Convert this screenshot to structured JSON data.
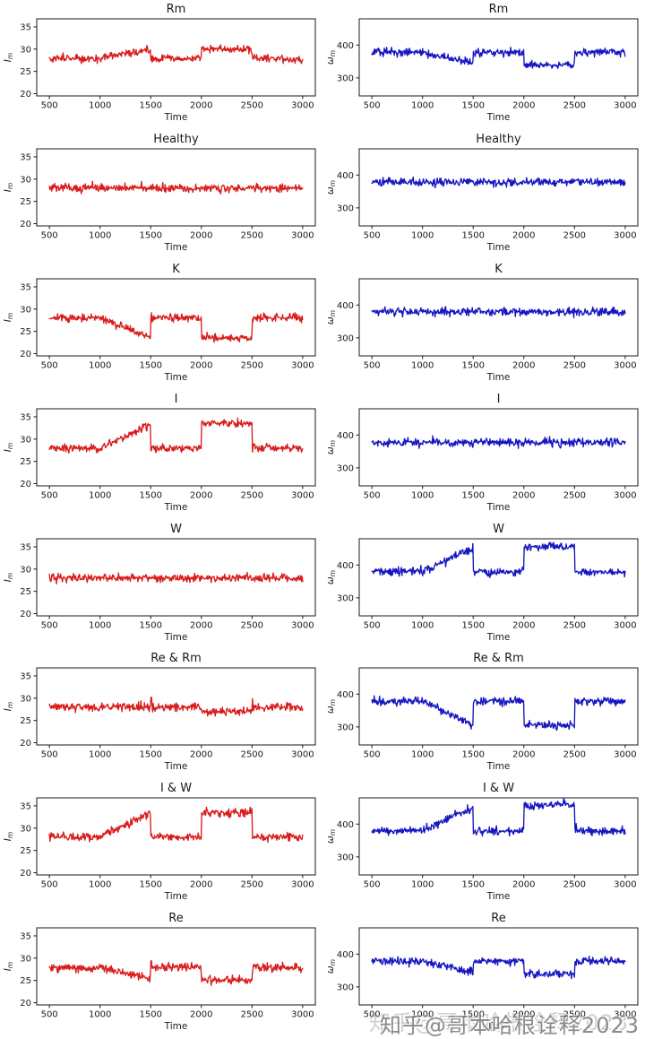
{
  "figure": {
    "background": "#ffffff",
    "text_color": "#1a1a1a",
    "xlabel": "Time",
    "xticks": [
      500,
      1000,
      1500,
      2000,
      2500,
      3000
    ],
    "xlim": [
      375,
      3125
    ],
    "x_range": [
      500,
      3000
    ],
    "grid": false,
    "legend": "none",
    "axes": {
      "left": {
        "ylabel_main": "I",
        "ylabel_sub": "m",
        "ylabel_italic": true,
        "yticks": [
          20,
          25,
          30,
          35
        ],
        "ylim": [
          19.5,
          36.8
        ],
        "color": "#d91c1c",
        "noise_sd": 0.45
      },
      "right": {
        "ylabel_main": "ω",
        "ylabel_sub": "m",
        "ylabel_italic": true,
        "yticks": [
          300,
          400
        ],
        "ylim": [
          245,
          480
        ],
        "color": "#1616c2",
        "noise_sd": 6.0
      }
    }
  },
  "chart_data": [
    {
      "id": "rm-left",
      "type": "line",
      "title": "Rm",
      "side": "left",
      "seed": 101,
      "segments": [
        [
          500,
          1000,
          28,
          28
        ],
        [
          1000,
          1500,
          28.1,
          29.8
        ],
        [
          1500,
          2000,
          27.9,
          27.9
        ],
        [
          2000,
          2500,
          30,
          30
        ],
        [
          2500,
          3000,
          27.8,
          27.8
        ]
      ],
      "spikes": []
    },
    {
      "id": "rm-right",
      "type": "line",
      "title": "Rm",
      "side": "right",
      "seed": 202,
      "segments": [
        [
          500,
          1000,
          378,
          378
        ],
        [
          1000,
          1500,
          377,
          345
        ],
        [
          1500,
          2000,
          378,
          378
        ],
        [
          2000,
          2500,
          341,
          341
        ],
        [
          2500,
          3000,
          379,
          379
        ]
      ],
      "spikes": []
    },
    {
      "id": "healthy-left",
      "type": "line",
      "title": "Healthy",
      "side": "left",
      "seed": 303,
      "segments": [
        [
          500,
          3000,
          28,
          28
        ]
      ],
      "spikes": []
    },
    {
      "id": "healthy-right",
      "type": "line",
      "title": "Healthy",
      "side": "right",
      "seed": 404,
      "segments": [
        [
          500,
          3000,
          378,
          378
        ]
      ],
      "spikes": []
    },
    {
      "id": "k-left",
      "type": "line",
      "title": "K",
      "side": "left",
      "seed": 505,
      "segments": [
        [
          500,
          1000,
          28,
          28
        ],
        [
          1000,
          1500,
          28,
          23.5
        ],
        [
          1500,
          2000,
          28,
          28
        ],
        [
          2000,
          2500,
          23.6,
          23.6
        ],
        [
          2500,
          3000,
          28,
          28
        ]
      ],
      "spikes": []
    },
    {
      "id": "k-right",
      "type": "line",
      "title": "K",
      "side": "right",
      "seed": 606,
      "segments": [
        [
          500,
          3000,
          380,
          380
        ]
      ],
      "spikes": []
    },
    {
      "id": "i-left",
      "type": "line",
      "title": "I",
      "side": "left",
      "seed": 707,
      "segments": [
        [
          500,
          1000,
          28,
          28
        ],
        [
          1000,
          1500,
          28.1,
          33.3
        ],
        [
          1500,
          2000,
          28,
          28
        ],
        [
          2000,
          2500,
          33.5,
          33.5
        ],
        [
          2500,
          3000,
          28,
          28
        ]
      ],
      "spikes": []
    },
    {
      "id": "i-right",
      "type": "line",
      "title": "I",
      "side": "right",
      "seed": 808,
      "segments": [
        [
          500,
          3000,
          378,
          378
        ]
      ],
      "spikes": []
    },
    {
      "id": "w-left",
      "type": "line",
      "title": "W",
      "side": "left",
      "seed": 909,
      "segments": [
        [
          500,
          3000,
          28,
          28
        ]
      ],
      "spikes": []
    },
    {
      "id": "w-right",
      "type": "line",
      "title": "W",
      "side": "right",
      "seed": 1010,
      "segments": [
        [
          500,
          1000,
          381,
          381
        ],
        [
          1000,
          1500,
          382,
          452
        ],
        [
          1500,
          2000,
          379,
          379
        ],
        [
          2000,
          2500,
          457,
          457
        ],
        [
          2500,
          3000,
          379,
          379
        ]
      ],
      "spikes": []
    },
    {
      "id": "rerm-left",
      "type": "line",
      "title": "Re & Rm",
      "side": "left",
      "seed": 1111,
      "segments": [
        [
          500,
          2000,
          28,
          28
        ],
        [
          2000,
          2500,
          27.1,
          27.1
        ],
        [
          2500,
          3000,
          28,
          28
        ]
      ],
      "spikes": [
        {
          "x": 1505,
          "v": 30.2
        },
        {
          "x": 2505,
          "v": 29.9
        }
      ]
    },
    {
      "id": "rerm-right",
      "type": "line",
      "title": "Re & Rm",
      "side": "right",
      "seed": 1212,
      "segments": [
        [
          500,
          1000,
          378,
          378
        ],
        [
          1000,
          1500,
          377,
          307
        ],
        [
          1500,
          2000,
          378,
          378
        ],
        [
          2000,
          2500,
          305,
          305
        ],
        [
          2500,
          3000,
          379,
          379
        ]
      ],
      "spikes": []
    },
    {
      "id": "iw-left",
      "type": "line",
      "title": "I & W",
      "side": "left",
      "seed": 1313,
      "segments": [
        [
          500,
          1000,
          28,
          28
        ],
        [
          1000,
          1500,
          28.1,
          33.4
        ],
        [
          1500,
          2000,
          28,
          28
        ],
        [
          2000,
          2500,
          33.5,
          33.5
        ],
        [
          2500,
          3000,
          28,
          28
        ]
      ],
      "spikes": []
    },
    {
      "id": "iw-right",
      "type": "line",
      "title": "I & W",
      "side": "right",
      "seed": 1414,
      "segments": [
        [
          500,
          1000,
          380,
          380
        ],
        [
          1000,
          1500,
          381,
          452
        ],
        [
          1500,
          2000,
          379,
          379
        ],
        [
          2000,
          2500,
          458,
          458
        ],
        [
          2500,
          3000,
          379,
          379
        ]
      ],
      "spikes": []
    },
    {
      "id": "re-left",
      "type": "line",
      "title": "Re",
      "side": "left",
      "seed": 1515,
      "segments": [
        [
          500,
          1000,
          27.8,
          27.8
        ],
        [
          1000,
          1500,
          27.8,
          25.4
        ],
        [
          1500,
          2000,
          28,
          28
        ],
        [
          2000,
          2500,
          25.1,
          25.1
        ],
        [
          2500,
          3000,
          27.9,
          27.9
        ]
      ],
      "spikes": [
        {
          "x": 1505,
          "v": 29.4
        }
      ]
    },
    {
      "id": "re-right",
      "type": "line",
      "title": "Re",
      "side": "right",
      "seed": 1616,
      "segments": [
        [
          500,
          1000,
          378,
          378
        ],
        [
          1000,
          1500,
          377,
          345
        ],
        [
          1500,
          2000,
          378,
          378
        ],
        [
          2000,
          2500,
          340,
          340
        ],
        [
          2500,
          3000,
          379,
          379
        ]
      ],
      "spikes": []
    }
  ],
  "watermark": {
    "text": "知乎@哥本哈根诠释2023"
  }
}
